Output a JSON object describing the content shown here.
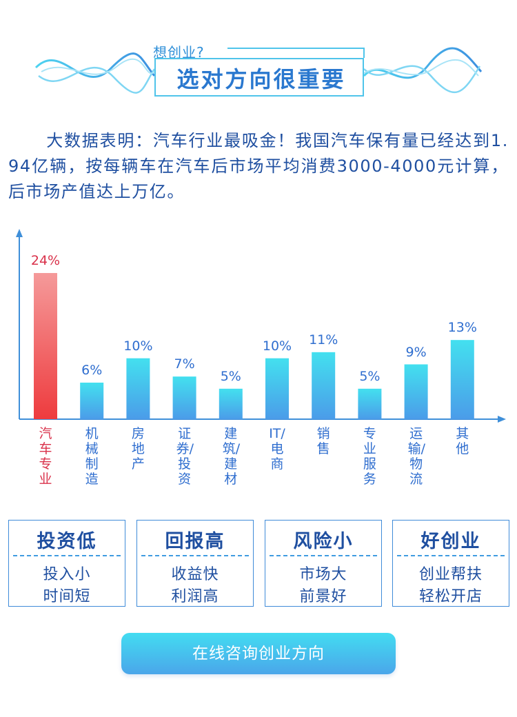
{
  "header": {
    "subtitle": "想创业?",
    "title": "选对方向很重要"
  },
  "intro": "大数据表明：汽车行业最吸金！我国汽车保有量已经达到1.94亿辆，按每辆车在汽车后市场平均消费3000-4000元计算，后市场产值达上万亿。",
  "chart_data": {
    "type": "bar",
    "categories": [
      "汽车专业",
      "机械制造",
      "房地产",
      "证券/投资",
      "建筑/建材",
      "IT/电商",
      "销售",
      "专业服务",
      "运输/物流",
      "其他"
    ],
    "values": [
      24,
      6,
      10,
      7,
      5,
      10,
      11,
      5,
      9,
      13
    ],
    "value_labels": [
      "24%",
      "6%",
      "10%",
      "7%",
      "5%",
      "10%",
      "11%",
      "5%",
      "9%",
      "13%"
    ],
    "highlight_index": 0,
    "ylim": [
      0,
      24
    ],
    "grid": false,
    "colors": {
      "highlight_top": "#f59a9a",
      "highlight_bottom": "#ee3b3e",
      "bar_top": "#43e0ef",
      "bar_bottom": "#4b9ce9",
      "axis": "#3f8fd9"
    }
  },
  "cards": [
    {
      "title": "投资低",
      "line1": "投入小",
      "line2": "时间短"
    },
    {
      "title": "回报高",
      "line1": "收益快",
      "line2": "利润高"
    },
    {
      "title": "风险小",
      "line1": "市场大",
      "line2": "前景好"
    },
    {
      "title": "好创业",
      "line1": "创业帮扶",
      "line2": "轻松开店"
    }
  ],
  "cta": {
    "label": "在线咨询创业方向"
  }
}
